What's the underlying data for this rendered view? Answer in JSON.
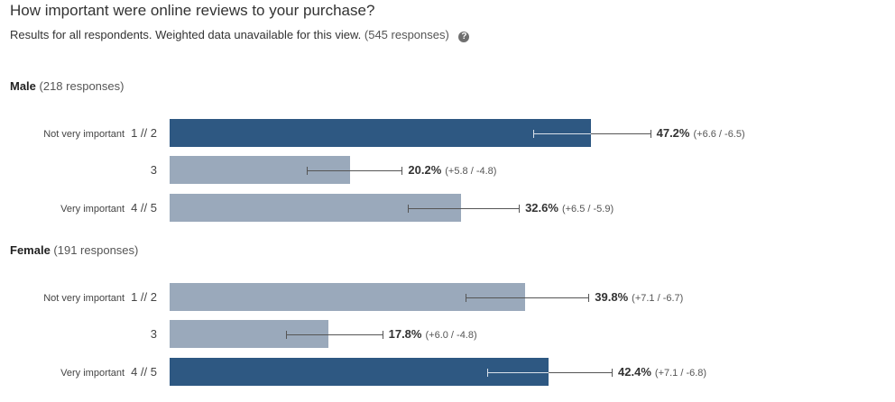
{
  "header": {
    "title": "How important were online reviews to your purchase?",
    "subtitle": "Results for all respondents. Weighted data unavailable for this view.",
    "responses": "(545 responses)",
    "help_icon": "question-circle-icon"
  },
  "colors": {
    "highlight_bar": "#2e5882",
    "normal_bar": "#9aa9bb",
    "error_bar": "#555555"
  },
  "chart_data": {
    "type": "bar",
    "orientation": "horizontal",
    "title": "How important were online reviews to your purchase?",
    "value_unit": "%",
    "groups": [
      {
        "name": "Male",
        "responses": "(218 responses)",
        "rows": [
          {
            "label": "Not very important",
            "code": "1 // 2",
            "value": 47.2,
            "ci_plus": 6.6,
            "ci_minus": 6.5,
            "pct_text": "47.2%",
            "ci_text": "(+6.6 / -6.5)",
            "highlight": true
          },
          {
            "label": "",
            "code": "3",
            "value": 20.2,
            "ci_plus": 5.8,
            "ci_minus": 4.8,
            "pct_text": "20.2%",
            "ci_text": "(+5.8 / -4.8)",
            "highlight": false
          },
          {
            "label": "Very important",
            "code": "4 // 5",
            "value": 32.6,
            "ci_plus": 6.5,
            "ci_minus": 5.9,
            "pct_text": "32.6%",
            "ci_text": "(+6.5 / -5.9)",
            "highlight": false
          }
        ]
      },
      {
        "name": "Female",
        "responses": "(191 responses)",
        "rows": [
          {
            "label": "Not very important",
            "code": "1 // 2",
            "value": 39.8,
            "ci_plus": 7.1,
            "ci_minus": 6.7,
            "pct_text": "39.8%",
            "ci_text": "(+7.1 / -6.7)",
            "highlight": false
          },
          {
            "label": "",
            "code": "3",
            "value": 17.8,
            "ci_plus": 6.0,
            "ci_minus": 4.8,
            "pct_text": "17.8%",
            "ci_text": "(+6.0 / -4.8)",
            "highlight": false
          },
          {
            "label": "Very important",
            "code": "4 // 5",
            "value": 42.4,
            "ci_plus": 7.1,
            "ci_minus": 6.8,
            "pct_text": "42.4%",
            "ci_text": "(+7.1 / -6.8)",
            "highlight": true
          }
        ]
      }
    ]
  }
}
